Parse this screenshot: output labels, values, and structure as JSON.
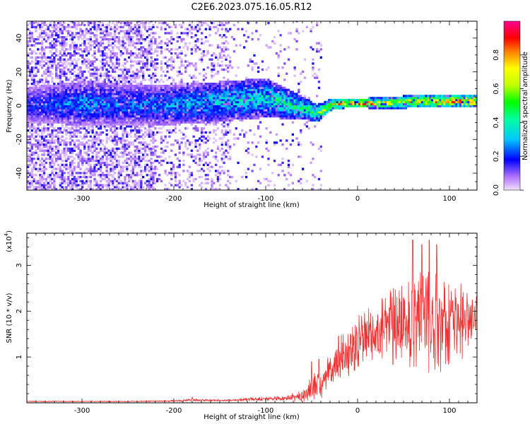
{
  "title": "C2E6.2023.075.16.05.R12",
  "colors": {
    "snr_line": "#f03030",
    "axis": "#000000",
    "spectrogram_purple": "#7000ff"
  },
  "chart_data": [
    {
      "type": "heatmap",
      "name": "spectrogram",
      "xlabel": "Height of straight line (km)",
      "ylabel": "Frequency (Hz)",
      "xlim": [
        -360,
        130
      ],
      "ylim": [
        -50,
        50
      ],
      "xticks": [
        -300,
        -200,
        -100,
        0,
        100
      ],
      "xtick_labels": [
        "-300",
        "-200",
        "-100",
        "0",
        "100"
      ],
      "yticks": [
        -40,
        -20,
        0,
        20,
        40
      ],
      "ytick_labels": [
        "-40",
        "-20",
        "0",
        "20",
        "40"
      ],
      "colorbar": {
        "label": "Normalized spectral amplitude",
        "range": [
          0,
          1
        ],
        "ticks": [
          0.0,
          0.2,
          0.4,
          0.6,
          0.8
        ],
        "tick_labels": [
          "0.0",
          "0.2",
          "0.4",
          "0.6",
          "0.8"
        ],
        "stops": [
          {
            "v": 0.0,
            "color": "#f0e0ff"
          },
          {
            "v": 0.08,
            "color": "#b070ff"
          },
          {
            "v": 0.18,
            "color": "#0000ff"
          },
          {
            "v": 0.3,
            "color": "#00c8ff"
          },
          {
            "v": 0.42,
            "color": "#00ffa0"
          },
          {
            "v": 0.52,
            "color": "#00ff00"
          },
          {
            "v": 0.62,
            "color": "#c0ff00"
          },
          {
            "v": 0.72,
            "color": "#ffff00"
          },
          {
            "v": 0.82,
            "color": "#ff8000"
          },
          {
            "v": 0.9,
            "color": "#ff0000"
          },
          {
            "v": 1.0,
            "color": "#ff0090"
          }
        ]
      },
      "ridge": {
        "x": [
          -360,
          -300,
          -250,
          -200,
          -150,
          -100,
          -80,
          -60,
          -45,
          -30,
          -10,
          0,
          30,
          60,
          90,
          130
        ],
        "center_hz": [
          0,
          1,
          0,
          0,
          2,
          4,
          1,
          -2,
          -5,
          0,
          1,
          1,
          1,
          2,
          2,
          2
        ],
        "halfwidth_hz": [
          8,
          10,
          9,
          9,
          9,
          9,
          7,
          5,
          4,
          2.5,
          2,
          2.2,
          2.5,
          3,
          3,
          3
        ],
        "peak_amplitude": [
          0.2,
          0.3,
          0.25,
          0.3,
          0.35,
          0.4,
          0.45,
          0.5,
          0.55,
          0.75,
          0.85,
          0.9,
          0.75,
          0.7,
          0.8,
          0.85
        ]
      }
    },
    {
      "type": "line",
      "name": "snr",
      "xlabel": "Height of straight line (km)",
      "ylabel": "SNR (10 * v/v)",
      "scale_label": "(x10",
      "scale_exponent": "4",
      "scale_close": ")",
      "xlim": [
        -360,
        130
      ],
      "ylim": [
        0,
        3.7
      ],
      "xticks": [
        -300,
        -200,
        -100,
        0,
        100
      ],
      "xtick_labels": [
        "-300",
        "-200",
        "-100",
        "0",
        "100"
      ],
      "yticks": [
        1,
        2,
        3
      ],
      "ytick_labels": [
        "1",
        "2",
        "3"
      ],
      "envelope": {
        "x": [
          -360,
          -250,
          -200,
          -180,
          -150,
          -110,
          -80,
          -60,
          -52,
          -45,
          -40,
          -35,
          -30,
          -25,
          -20,
          -10,
          0,
          20,
          40,
          50,
          60,
          70,
          80,
          90,
          100,
          110,
          120,
          130
        ],
        "mean": [
          0.03,
          0.03,
          0.04,
          0.06,
          0.05,
          0.08,
          0.1,
          0.15,
          0.3,
          0.4,
          0.3,
          0.6,
          0.75,
          0.9,
          1.0,
          1.05,
          1.3,
          1.5,
          1.65,
          1.75,
          1.8,
          1.8,
          1.75,
          1.75,
          1.8,
          1.75,
          1.8,
          1.85
        ],
        "spread": [
          0.01,
          0.01,
          0.02,
          0.03,
          0.02,
          0.04,
          0.05,
          0.15,
          0.3,
          0.4,
          0.3,
          0.35,
          0.4,
          0.45,
          0.5,
          0.5,
          0.6,
          0.7,
          0.9,
          1.0,
          1.1,
          1.2,
          1.2,
          1.1,
          1.0,
          0.9,
          0.7,
          0.6
        ]
      },
      "peaks": [
        {
          "x": 60,
          "y": 3.55
        },
        {
          "x": 70,
          "y": 3.45
        },
        {
          "x": 78,
          "y": 3.55
        },
        {
          "x": 86,
          "y": 3.45
        },
        {
          "x": -180,
          "y": 0.12
        },
        {
          "x": -50,
          "y": 0.9
        },
        {
          "x": -42,
          "y": 0.95
        }
      ]
    }
  ]
}
